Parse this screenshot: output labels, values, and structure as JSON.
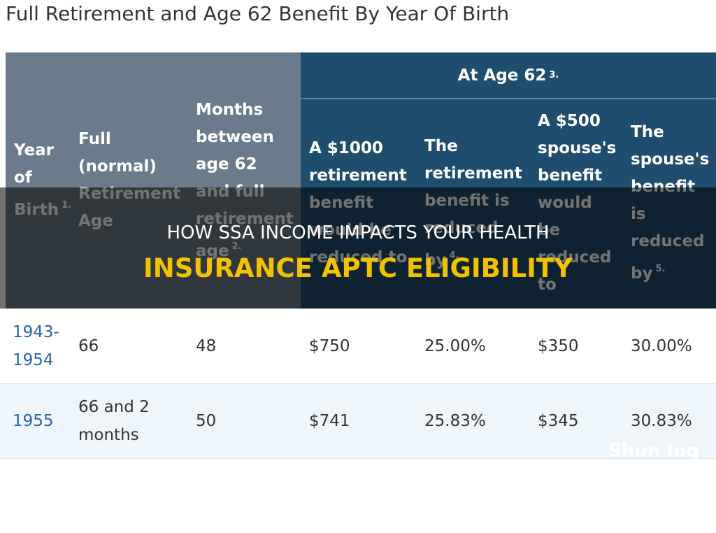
{
  "page_title": "Full Retirement and Age 62 Benefit By Year Of Birth",
  "table": {
    "group_header": {
      "text": "At Age 62",
      "note": "3."
    },
    "headers": [
      {
        "text": "Year of Birth",
        "note": "1."
      },
      {
        "text": "Full (normal) Retirement Age"
      },
      {
        "text": "Months between age 62 and full retirement age",
        "note": "2."
      },
      {
        "text": "A $1000 retirement benefit would be reduced to"
      },
      {
        "text": "The retirement benefit is reduced by",
        "note": "4."
      },
      {
        "text": "A $500 spouse's benefit would be reduced to"
      },
      {
        "text": "The spouse's benefit is reduced by",
        "note": "5."
      }
    ],
    "rows": [
      [
        "1943-1954",
        "66",
        "48",
        "$750",
        "25.00%",
        "$350",
        "30.00%"
      ],
      [
        "1955",
        "66 and 2 months",
        "50",
        "$741",
        "25.83%",
        "$345",
        "30.83%"
      ]
    ]
  },
  "banner": {
    "line1": "HOW SSA INCOME IMPACTS YOUR HEALTH",
    "line2": "INSURANCE APTC ELIGIBILITY"
  },
  "watermark": "Shun Inq"
}
